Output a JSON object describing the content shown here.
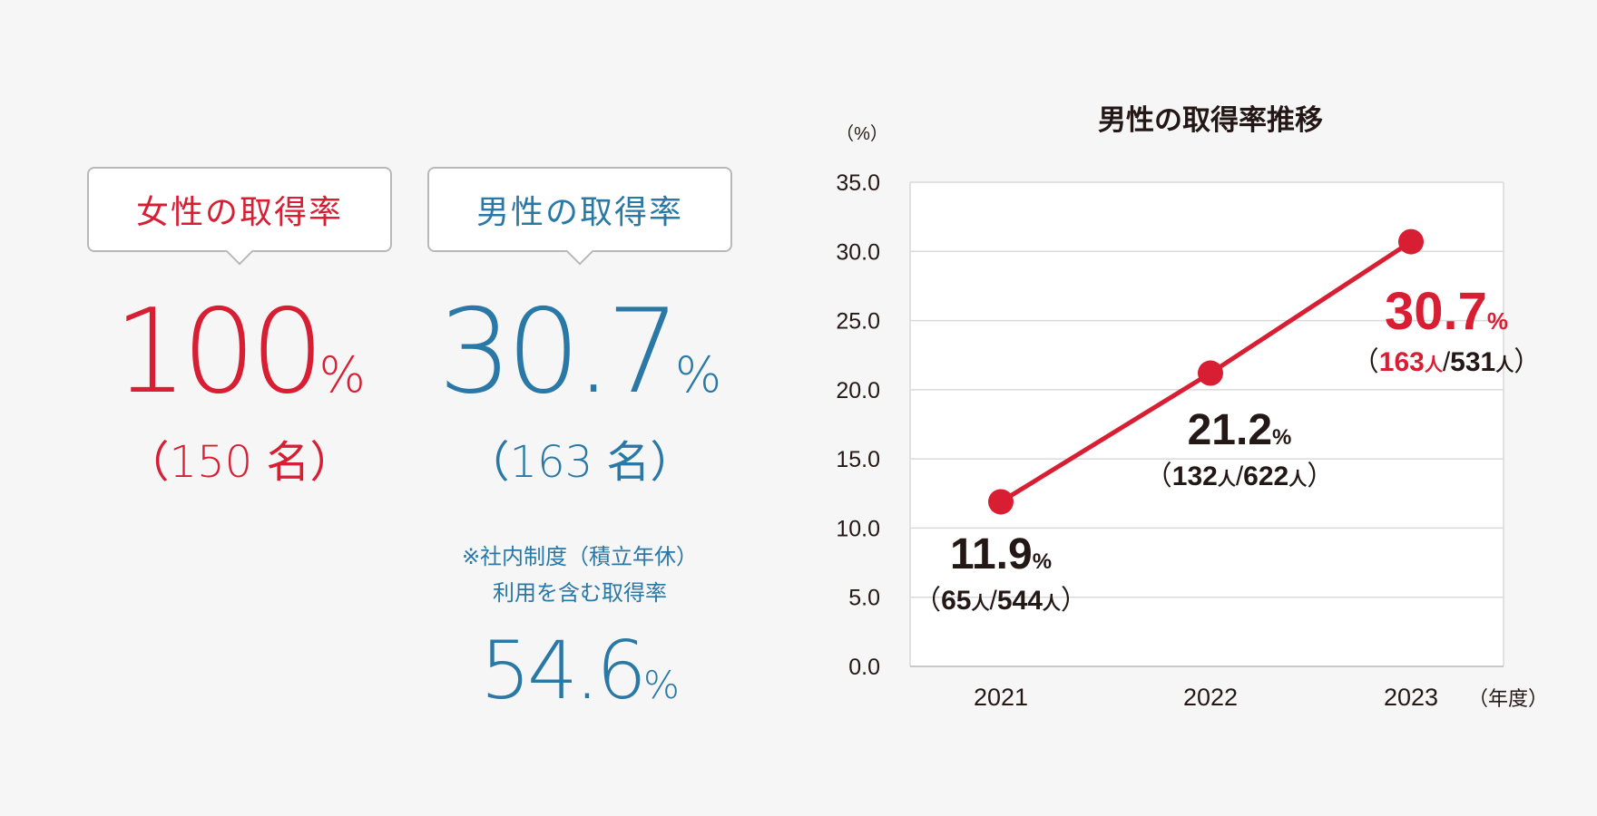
{
  "summary": {
    "female": {
      "label": "女性の取得率",
      "value": "100",
      "unit": "%",
      "count": "（150 名）"
    },
    "male": {
      "label": "男性の取得率",
      "value": "30.7",
      "unit": "%",
      "count": "（163 名）"
    },
    "note": {
      "line1": "※社内制度（積立年休）",
      "line2": "利用を含む取得率",
      "value": "54.6",
      "unit": "%"
    }
  },
  "colors": {
    "female": "#d81e33",
    "male": "#2a78a5",
    "line": "#d81e33",
    "grid": "#d9d9d9"
  },
  "chart_data": {
    "type": "line",
    "title": "男性の取得率推移",
    "ylabel": "（%）",
    "xlabel": "（年度）",
    "categories": [
      "2021",
      "2022",
      "2023"
    ],
    "values": [
      11.9,
      21.2,
      30.7
    ],
    "ylim": [
      0,
      35
    ],
    "yticks": [
      "0.0",
      "5.0",
      "10.0",
      "15.0",
      "20.0",
      "25.0",
      "30.0",
      "35.0"
    ],
    "grid": true,
    "data_labels": [
      {
        "value": "11.9",
        "unit": "%",
        "open": "（",
        "num": "65",
        "num_unit": "人",
        "sep": "/",
        "den": "544",
        "den_unit": "人",
        "close": "）",
        "highlight": false
      },
      {
        "value": "21.2",
        "unit": "%",
        "open": "（",
        "num": "132",
        "num_unit": "人",
        "sep": "/",
        "den": "622",
        "den_unit": "人",
        "close": "）",
        "highlight": false
      },
      {
        "value": "30.7",
        "unit": "%",
        "open": "（",
        "num": "163",
        "num_unit": "人",
        "sep": "/",
        "den": "531",
        "den_unit": "人",
        "close": "）",
        "highlight": true
      }
    ]
  }
}
